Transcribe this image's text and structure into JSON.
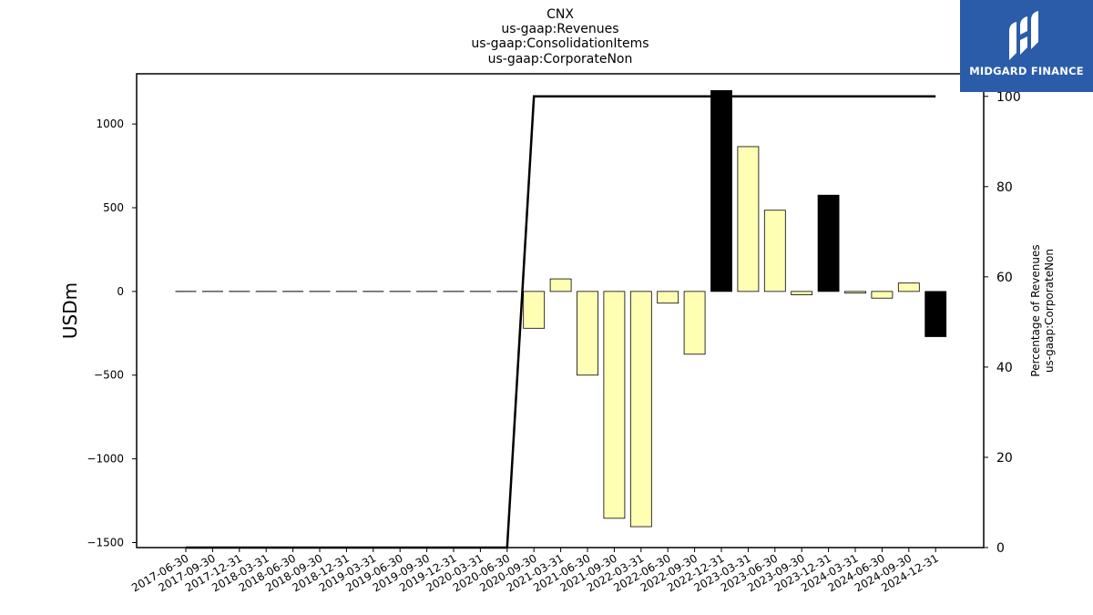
{
  "logo": {
    "text": "MIDGARD FINANCE",
    "color": "#2a5caa"
  },
  "chart_data": {
    "type": "bar",
    "title_lines": [
      "CNX",
      "us-gaap:Revenues",
      "us-gaap:ConsolidationItems",
      "us-gaap:CorporateNon"
    ],
    "ylabel": "USDm",
    "ylabel_right": [
      "Percentage of Revenues",
      "us-gaap:CorporateNon"
    ],
    "ylim": [
      -1530,
      1300
    ],
    "ylim_right": [
      0,
      105
    ],
    "yticks": [
      -1500,
      -1000,
      -500,
      0,
      500,
      1000
    ],
    "yticks_right": [
      0,
      20,
      40,
      60,
      80,
      100
    ],
    "categories": [
      "2017-06-30",
      "2017-09-30",
      "2017-12-31",
      "2018-03-31",
      "2018-06-30",
      "2018-09-30",
      "2018-12-31",
      "2019-03-31",
      "2019-06-30",
      "2019-09-30",
      "2019-12-31",
      "2020-03-31",
      "2020-06-30",
      "2020-09-30",
      "2021-03-31",
      "2021-06-30",
      "2021-09-30",
      "2022-03-31",
      "2022-06-30",
      "2022-09-30",
      "2022-12-31",
      "2023-03-31",
      "2023-06-30",
      "2023-09-30",
      "2023-12-31",
      "2024-03-31",
      "2024-06-30",
      "2024-09-30",
      "2024-12-31"
    ],
    "series": [
      {
        "type": "bar",
        "values": [
          0,
          0,
          0,
          0,
          0,
          0,
          0,
          0,
          0,
          0,
          0,
          0,
          0,
          -220,
          75,
          -500,
          -1355,
          -1405,
          -70,
          -375,
          1200,
          865,
          485,
          -20,
          575,
          -10,
          -40,
          50,
          -270
        ]
      },
      {
        "type": "line",
        "axis": "right",
        "values": [
          0,
          0,
          0,
          0,
          0,
          0,
          0,
          0,
          0,
          0,
          0,
          0,
          0,
          100,
          100,
          100,
          100,
          100,
          100,
          100,
          100,
          100,
          100,
          100,
          100,
          100,
          100,
          100,
          100
        ]
      }
    ],
    "bar_colors": [
      "#ffffff",
      "#ffffff",
      "#ffffff",
      "#ffffff",
      "#ffffff",
      "#ffffff",
      "#ffffff",
      "#ffffff",
      "#ffffff",
      "#ffffff",
      "#ffffff",
      "#ffffff",
      "#ffffff",
      "#ffffb4",
      "#ffffb4",
      "#ffffb4",
      "#ffffb4",
      "#ffffb4",
      "#ffffb4",
      "#ffffb4",
      "#000000",
      "#ffffb4",
      "#ffffb4",
      "#ffffb4",
      "#000000",
      "#ffffb4",
      "#ffffb4",
      "#ffffb4",
      "#000000"
    ],
    "grid": false,
    "legend": "none"
  }
}
